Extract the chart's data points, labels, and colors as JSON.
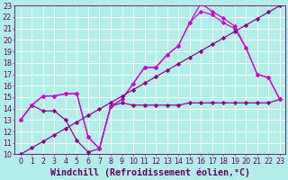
{
  "bg_color": "#b2edea",
  "line_color1": "#880088",
  "line_color2": "#cc00cc",
  "xlim": [
    -0.5,
    23.5
  ],
  "ylim": [
    10,
    23
  ],
  "xticks": [
    0,
    1,
    2,
    3,
    4,
    5,
    6,
    7,
    8,
    9,
    10,
    11,
    12,
    13,
    14,
    15,
    16,
    17,
    18,
    19,
    20,
    21,
    22,
    23
  ],
  "yticks": [
    10,
    11,
    12,
    13,
    14,
    15,
    16,
    17,
    18,
    19,
    20,
    21,
    22,
    23
  ],
  "xlabel": "Windchill (Refroidissement éolien,°C)",
  "tick_color": "#660066",
  "tick_fontsize": 5.8,
  "xlabel_fontsize": 7.2,
  "s1_x": [
    0,
    1,
    2,
    3,
    4,
    5,
    6,
    7,
    8,
    9,
    10,
    11,
    12,
    13,
    14,
    15,
    16,
    17,
    18,
    19,
    20,
    21,
    22,
    23
  ],
  "s1_y": [
    13.0,
    14.3,
    13.8,
    13.8,
    13.0,
    11.2,
    10.2,
    10.5,
    14.2,
    14.5,
    14.3,
    14.3,
    14.3,
    14.3,
    14.3,
    14.5,
    14.5,
    14.5,
    14.5,
    14.5,
    14.5,
    14.5,
    14.5,
    14.8
  ],
  "s2_x": [
    0,
    1,
    2,
    3,
    4,
    5,
    6,
    7,
    8,
    9,
    10,
    11,
    12,
    13,
    14,
    15,
    16,
    17,
    18,
    19,
    20,
    21,
    22,
    23
  ],
  "s2_y": [
    13.0,
    14.3,
    15.1,
    15.1,
    15.3,
    15.3,
    11.5,
    10.5,
    14.2,
    14.8,
    16.2,
    17.6,
    17.6,
    18.7,
    19.5,
    21.5,
    23.2,
    22.5,
    21.9,
    21.2,
    19.3,
    17.0,
    16.7,
    14.8
  ],
  "s3_x": [
    0,
    1,
    2,
    3,
    4,
    5,
    6,
    7,
    8,
    9,
    10,
    11,
    12,
    13,
    14,
    15,
    16,
    17,
    18,
    19,
    20,
    21,
    22,
    23
  ],
  "s3_y": [
    13.0,
    14.3,
    15.1,
    15.1,
    15.3,
    15.3,
    11.5,
    10.5,
    14.2,
    14.8,
    16.2,
    17.6,
    17.6,
    18.7,
    19.5,
    21.5,
    22.5,
    22.2,
    21.5,
    21.0,
    19.3,
    17.0,
    16.7,
    14.8
  ],
  "diag_x": [
    0,
    1,
    2,
    3,
    4,
    5,
    6,
    7,
    8,
    9,
    10,
    11,
    12,
    13,
    14,
    15,
    16,
    17,
    18,
    19,
    20,
    21,
    22,
    23
  ],
  "diag_y": [
    10.0,
    10.565,
    11.13,
    11.696,
    12.261,
    12.826,
    13.391,
    13.957,
    14.522,
    15.087,
    15.652,
    16.217,
    16.783,
    17.348,
    17.913,
    18.478,
    19.043,
    19.609,
    20.174,
    20.739,
    21.304,
    21.87,
    22.435,
    23.0
  ]
}
